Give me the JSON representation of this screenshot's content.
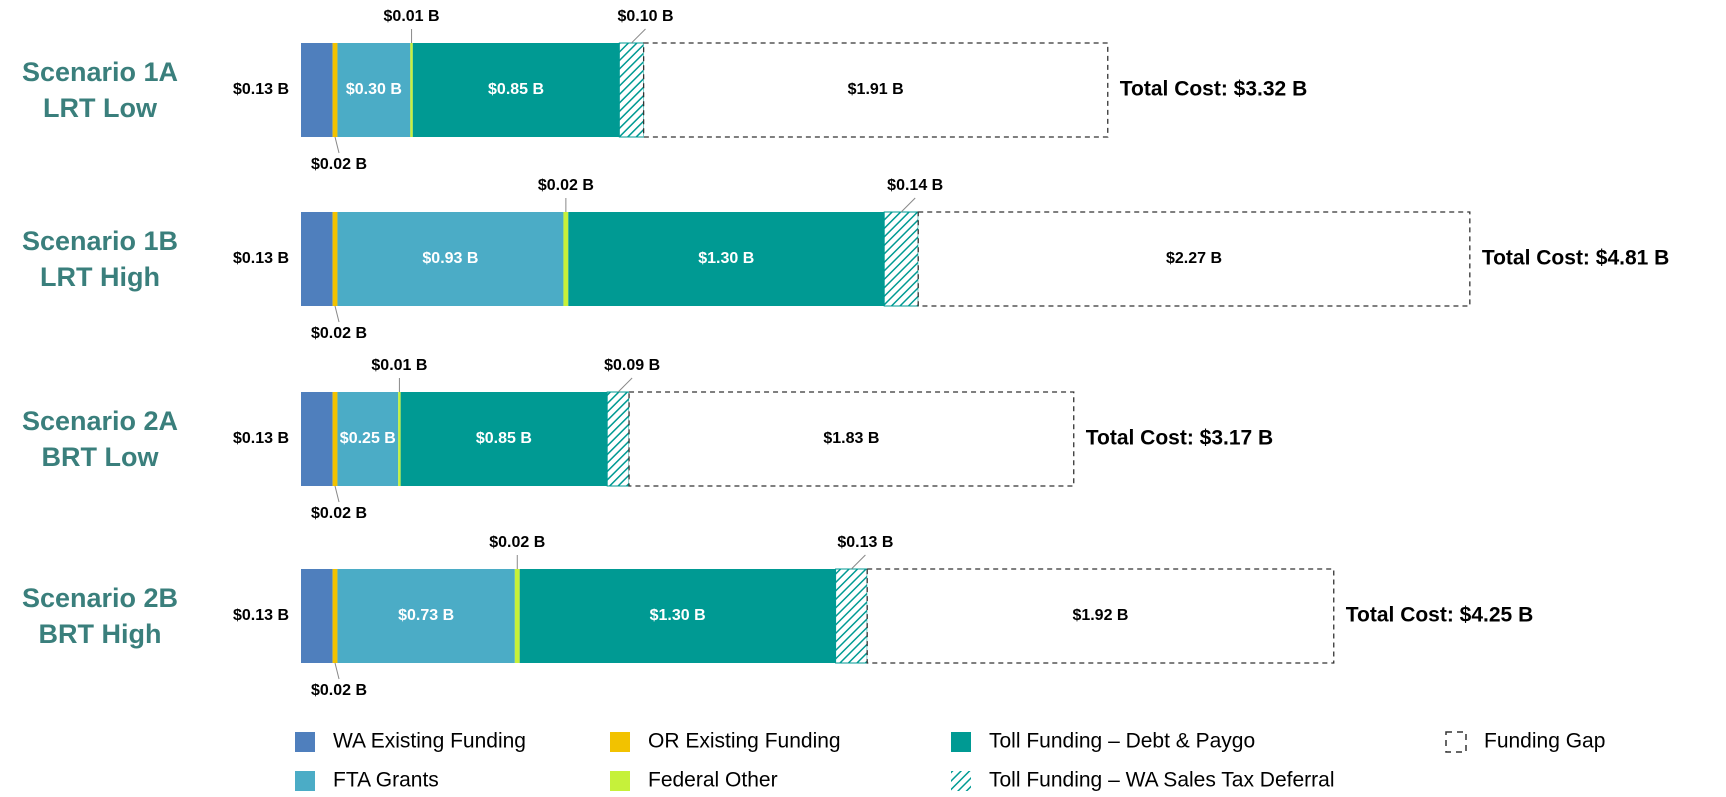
{
  "chart_data": {
    "type": "stacked-barh",
    "categories": [
      [
        "Scenario 1A",
        "LRT Low"
      ],
      [
        "Scenario 1B",
        "LRT High"
      ],
      [
        "Scenario 2A",
        "BRT Low"
      ],
      [
        "Scenario 2B",
        "BRT High"
      ]
    ],
    "annotations": [
      "Total Cost: $3.32 B",
      "Total Cost: $4.81 B",
      "Total Cost: $3.17 B",
      "Total Cost: $4.25 B"
    ],
    "series": [
      {
        "name": "WA Existing Funding",
        "color": "#4f7fbd",
        "values": [
          0.13,
          0.13,
          0.13,
          0.13
        ],
        "value_labels": [
          "$0.13 B",
          "$0.13 B",
          "$0.13 B",
          "$0.13 B"
        ]
      },
      {
        "name": "OR Existing Funding",
        "color": "#f2c200",
        "values": [
          0.02,
          0.02,
          0.02,
          0.02
        ],
        "value_labels": [
          "$0.02 B",
          "$0.02 B",
          "$0.02 B",
          "$0.02 B"
        ]
      },
      {
        "name": "FTA Grants",
        "color": "#4bacc6",
        "values": [
          0.3,
          0.93,
          0.25,
          0.73
        ],
        "value_labels": [
          "$0.30 B",
          "$0.93 B",
          "$0.25 B",
          "$0.73 B"
        ]
      },
      {
        "name": "Federal Other",
        "color": "#c6f13a",
        "values": [
          0.01,
          0.02,
          0.01,
          0.02
        ],
        "value_labels": [
          "$0.01 B",
          "$0.02 B",
          "$0.01 B",
          "$0.02 B"
        ]
      },
      {
        "name": "Toll Funding – Debt & Paygo",
        "color": "#009a93",
        "values": [
          0.85,
          1.3,
          0.85,
          1.3
        ],
        "value_labels": [
          "$0.85 B",
          "$1.30 B",
          "$0.85 B",
          "$1.30 B"
        ]
      },
      {
        "name": "Toll Funding – WA Sales Tax Deferral",
        "color": "#009a93",
        "values": [
          0.1,
          0.14,
          0.09,
          0.13
        ],
        "value_labels": [
          "$0.10 B",
          "$0.14 B",
          "$0.09 B",
          "$0.13 B"
        ]
      },
      {
        "name": "Funding Gap",
        "color": "#ffffff",
        "values": [
          1.91,
          2.27,
          1.83,
          1.92
        ],
        "value_labels": [
          "$1.91 B",
          "$2.27 B",
          "$1.83 B",
          "$1.92 B"
        ]
      }
    ]
  }
}
